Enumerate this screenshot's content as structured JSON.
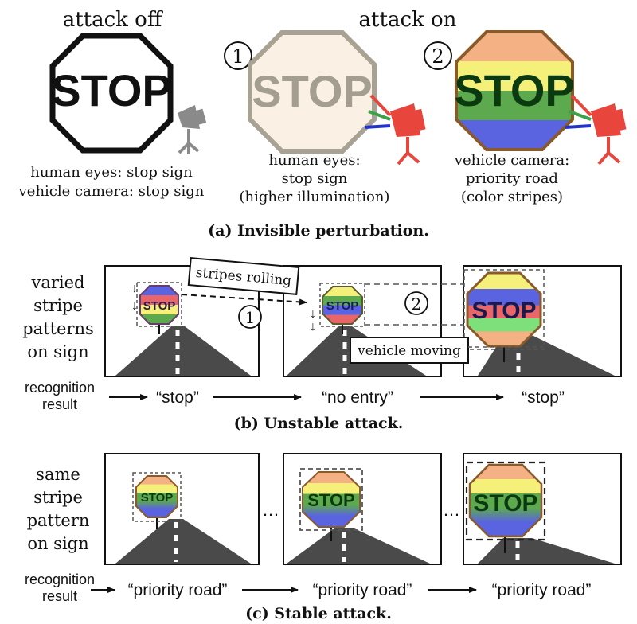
{
  "part_a": {
    "attack_off": "attack off",
    "attack_on": "attack on",
    "sign_text": "STOP",
    "step1": "①",
    "step2": "②",
    "off_caption": [
      "human eyes: stop sign",
      "vehicle camera: stop sign"
    ],
    "step1_caption": [
      "human eyes:",
      "stop sign",
      "(higher illumination)"
    ],
    "step2_caption": [
      "vehicle camera:",
      "priority road",
      "(color stripes)"
    ],
    "caption": "(a) Invisible perturbation."
  },
  "part_b": {
    "side_label": [
      "varied",
      "stripe",
      "patterns",
      "on sign"
    ],
    "result_label": [
      "recognition",
      "result"
    ],
    "results": [
      "“stop”",
      "“no entry”",
      "“stop”"
    ],
    "callout_stripes": "stripes rolling",
    "callout_vehicle": "vehicle moving",
    "step1": "①",
    "step2": "②",
    "sign_text": "STOP",
    "caption": "(b) Unstable attack."
  },
  "part_c": {
    "side_label": [
      "same",
      "stripe",
      "pattern",
      "on sign"
    ],
    "result_label": [
      "recognition",
      "result"
    ],
    "results": [
      "“priority road”",
      "“priority road”",
      "“priority road”"
    ],
    "ellipsis": "…",
    "sign_text": "STOP",
    "caption": "(c) Stable attack."
  },
  "colors": {
    "red": "#e8453c",
    "orange": "#f4b183",
    "yellow": "#f5f07a",
    "green": "#5daa4e",
    "blue": "#3b3ed6",
    "beige_fill": "#faf1e4",
    "beige_edge": "#a8a294",
    "road": "#4a4a4a",
    "projector": "#e8453c"
  },
  "icons": [
    "camera-icon",
    "projector-icon",
    "arrow-icon",
    "dashed-box-icon"
  ]
}
